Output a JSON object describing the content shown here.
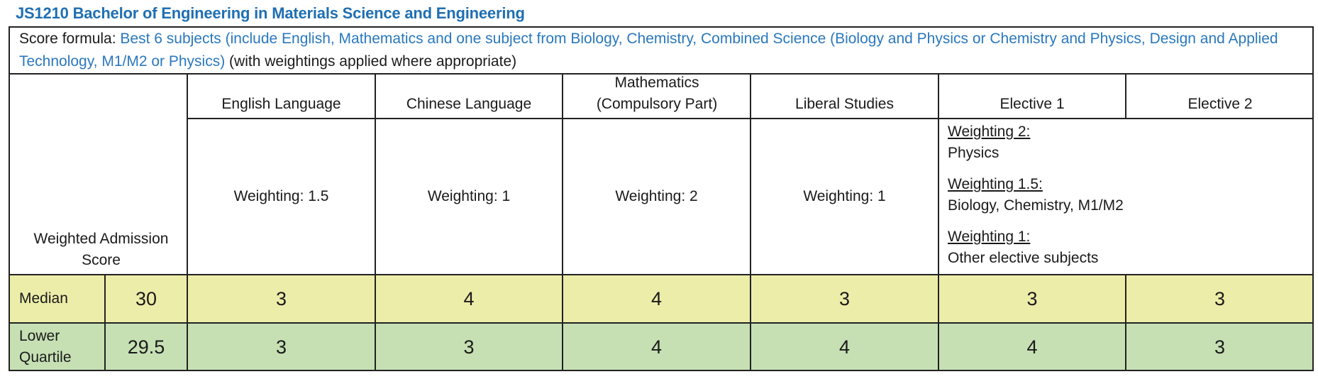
{
  "title": "JS1210 Bachelor of Engineering in Materials Science and Engineering",
  "formula": {
    "label": "Score formula: ",
    "requirement": "Best 6 subjects (include English, Mathematics and one subject from Biology, Chemistry, Combined Science (Biology and Physics or Chemistry and Physics, Design and Applied Technology, M1/M2 or Physics)",
    "suffix": " (with weightings applied where appropriate)"
  },
  "header": {
    "score_label": "Weighted Admission Score",
    "subjects": [
      "English Language",
      "Chinese Language",
      "Mathematics (Compulsory Part)",
      "Liberal Studies",
      "Elective 1",
      "Elective 2"
    ]
  },
  "weightings": [
    "Weighting: 1.5",
    "Weighting: 1",
    "Weighting: 2",
    "Weighting: 1"
  ],
  "elective_weightings": [
    {
      "label": "Weighting 2:",
      "subjects": "Physics"
    },
    {
      "label": "Weighting 1.5:",
      "subjects": "Biology, Chemistry, M1/M2"
    },
    {
      "label": "Weighting 1:",
      "subjects": "Other elective subjects"
    }
  ],
  "rows": [
    {
      "label": "Median",
      "score": "30",
      "grades": [
        "3",
        "4",
        "4",
        "3",
        "3",
        "3"
      ],
      "color": "#ededaa"
    },
    {
      "label": "Lower Quartile",
      "score": "29.5",
      "grades": [
        "3",
        "3",
        "4",
        "4",
        "4",
        "3"
      ],
      "color": "#c6e0b4"
    }
  ]
}
